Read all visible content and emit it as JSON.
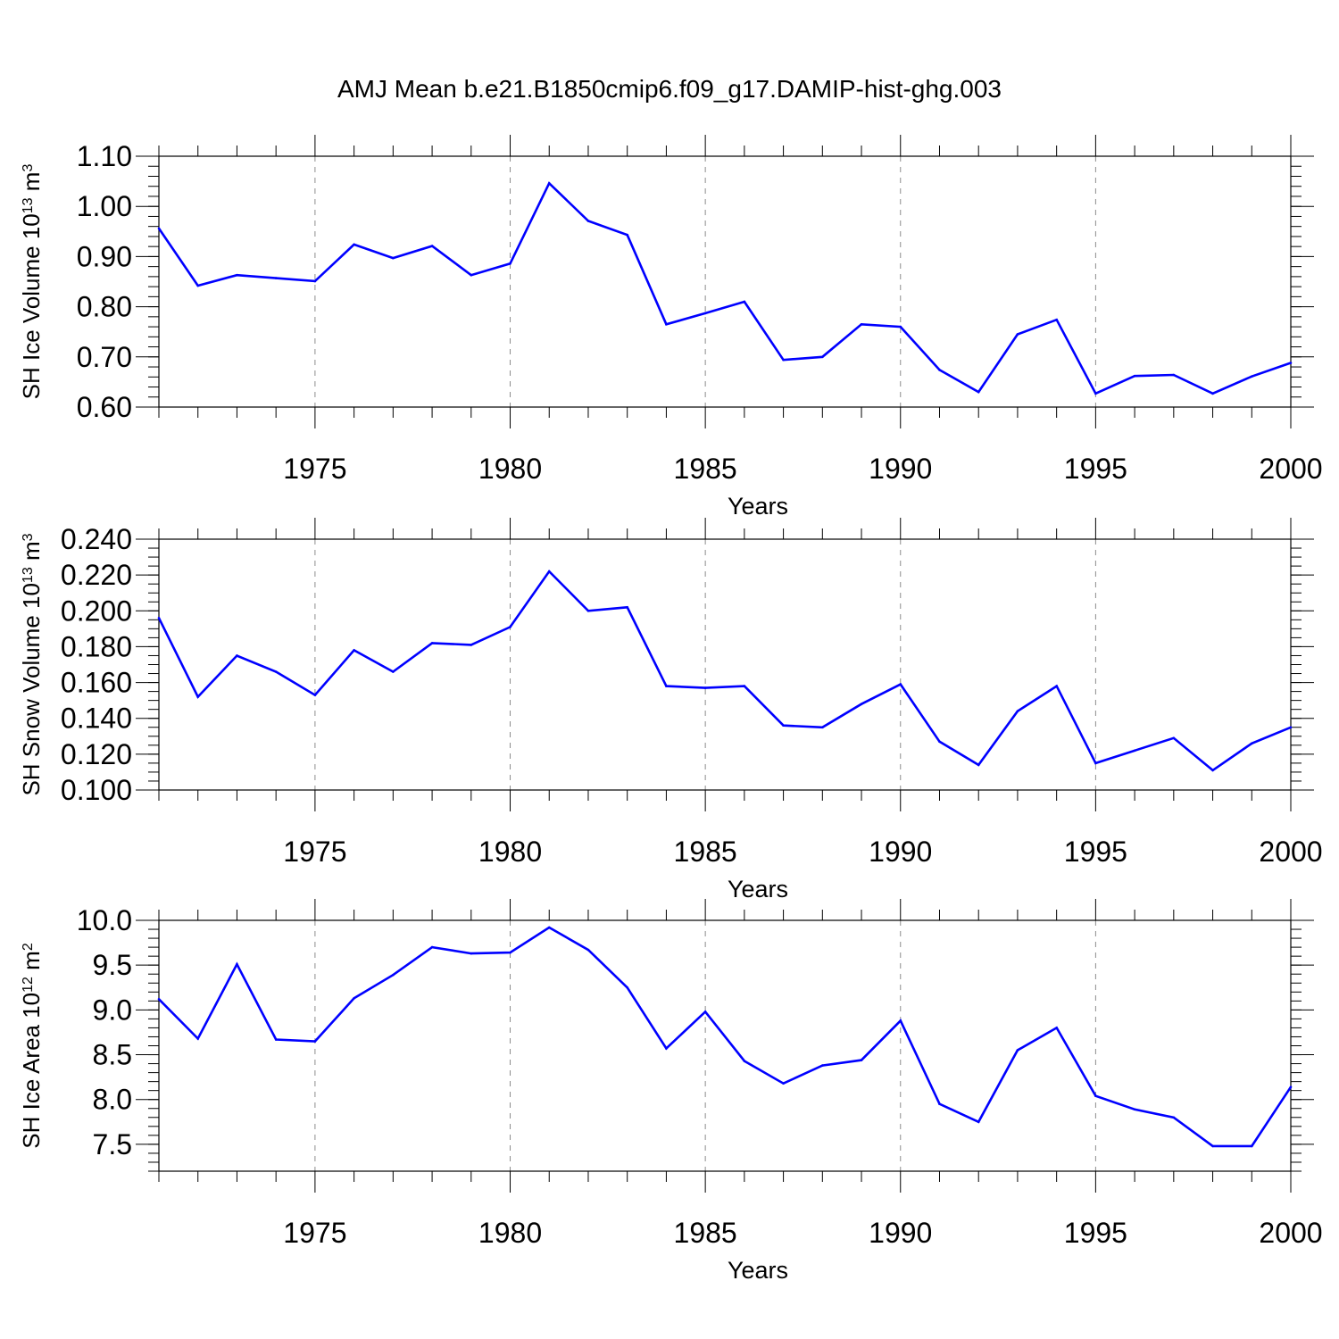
{
  "title": "AMJ Mean b.e21.B1850cmip6.f09_g17.DAMIP-hist-ghg.003",
  "colors": {
    "series": "#0000ff",
    "axis": "#000000",
    "grid": "#8c8c8c"
  },
  "chart_data": [
    {
      "type": "line",
      "title": "AMJ Mean b.e21.B1850cmip6.f09_g17.DAMIP-hist-ghg.003",
      "xlabel": "Years",
      "ylabel": "SH Ice Volume 10",
      "ylabel_sup": "13",
      "ylabel_unit": " m",
      "ylabel_unit_sup": "3",
      "xlim": [
        1971,
        2000
      ],
      "ylim": [
        0.6,
        1.1
      ],
      "yticks": [
        0.6,
        0.7,
        0.8,
        0.9,
        1.0,
        1.1
      ],
      "ytick_labels": [
        "0.60",
        "0.70",
        "0.80",
        "0.90",
        "1.00",
        "1.10"
      ],
      "yminor_step": 0.02,
      "xticks": [
        1975,
        1980,
        1985,
        1990,
        1995,
        2000
      ],
      "xtick_labels": [
        "1975",
        "1980",
        "1985",
        "1990",
        "1995",
        "2000"
      ],
      "grid": "vertical dashed at major x ticks",
      "x": [
        1971,
        1972,
        1973,
        1974,
        1975,
        1976,
        1977,
        1978,
        1979,
        1980,
        1981,
        1982,
        1983,
        1984,
        1985,
        1986,
        1987,
        1988,
        1989,
        1990,
        1991,
        1992,
        1993,
        1994,
        1995,
        1996,
        1997,
        1998,
        1999,
        2000
      ],
      "series": [
        {
          "values": [
            0.956,
            0.842,
            0.863,
            0.857,
            0.851,
            0.924,
            0.897,
            0.921,
            0.863,
            0.886,
            1.046,
            0.971,
            0.943,
            0.765,
            0.787,
            0.81,
            0.694,
            0.7,
            0.765,
            0.76,
            0.674,
            0.63,
            0.745,
            0.774,
            0.627,
            0.662,
            0.664,
            0.627,
            0.661,
            0.688
          ]
        }
      ]
    },
    {
      "type": "line",
      "xlabel": "Years",
      "ylabel": "SH Snow Volume 10",
      "ylabel_sup": "13",
      "ylabel_unit": " m",
      "ylabel_unit_sup": "3",
      "xlim": [
        1971,
        2000
      ],
      "ylim": [
        0.1,
        0.24
      ],
      "yticks": [
        0.1,
        0.12,
        0.14,
        0.16,
        0.18,
        0.2,
        0.22,
        0.24
      ],
      "ytick_labels": [
        "0.100",
        "0.120",
        "0.140",
        "0.160",
        "0.180",
        "0.200",
        "0.220",
        "0.240"
      ],
      "yminor_step": 0.005,
      "xticks": [
        1975,
        1980,
        1985,
        1990,
        1995,
        2000
      ],
      "xtick_labels": [
        "1975",
        "1980",
        "1985",
        "1990",
        "1995",
        "2000"
      ],
      "grid": "vertical dashed at major x ticks",
      "x": [
        1971,
        1972,
        1973,
        1974,
        1975,
        1976,
        1977,
        1978,
        1979,
        1980,
        1981,
        1982,
        1983,
        1984,
        1985,
        1986,
        1987,
        1988,
        1989,
        1990,
        1991,
        1992,
        1993,
        1994,
        1995,
        1996,
        1997,
        1998,
        1999,
        2000
      ],
      "series": [
        {
          "values": [
            0.196,
            0.152,
            0.175,
            0.166,
            0.153,
            0.178,
            0.166,
            0.182,
            0.181,
            0.191,
            0.222,
            0.2,
            0.202,
            0.158,
            0.157,
            0.158,
            0.136,
            0.135,
            0.148,
            0.159,
            0.127,
            0.114,
            0.144,
            0.158,
            0.115,
            0.122,
            0.129,
            0.111,
            0.126,
            0.135
          ]
        }
      ]
    },
    {
      "type": "line",
      "xlabel": "Years",
      "ylabel": "SH Ice Area 10",
      "ylabel_sup": "12",
      "ylabel_unit": " m",
      "ylabel_unit_sup": "2",
      "xlim": [
        1971,
        2000
      ],
      "ylim": [
        7.2,
        10.0
      ],
      "yticks": [
        7.5,
        8.0,
        8.5,
        9.0,
        9.5,
        10.0
      ],
      "ytick_labels": [
        "7.5",
        "8.0",
        "8.5",
        "9.0",
        "9.5",
        "10.0"
      ],
      "yminor_step": 0.1,
      "xticks": [
        1975,
        1980,
        1985,
        1990,
        1995,
        2000
      ],
      "xtick_labels": [
        "1975",
        "1980",
        "1985",
        "1990",
        "1995",
        "2000"
      ],
      "grid": "vertical dashed at major x ticks",
      "x": [
        1971,
        1972,
        1973,
        1974,
        1975,
        1976,
        1977,
        1978,
        1979,
        1980,
        1981,
        1982,
        1983,
        1984,
        1985,
        1986,
        1987,
        1988,
        1989,
        1990,
        1991,
        1992,
        1993,
        1994,
        1995,
        1996,
        1997,
        1998,
        1999,
        2000
      ],
      "series": [
        {
          "values": [
            9.12,
            8.68,
            9.51,
            8.67,
            8.65,
            9.13,
            9.39,
            9.7,
            9.63,
            9.64,
            9.92,
            9.67,
            9.25,
            8.57,
            8.98,
            8.43,
            8.18,
            8.38,
            8.44,
            8.88,
            7.95,
            7.75,
            8.55,
            8.8,
            8.04,
            7.89,
            7.8,
            7.48,
            7.48,
            8.14
          ]
        }
      ]
    }
  ]
}
